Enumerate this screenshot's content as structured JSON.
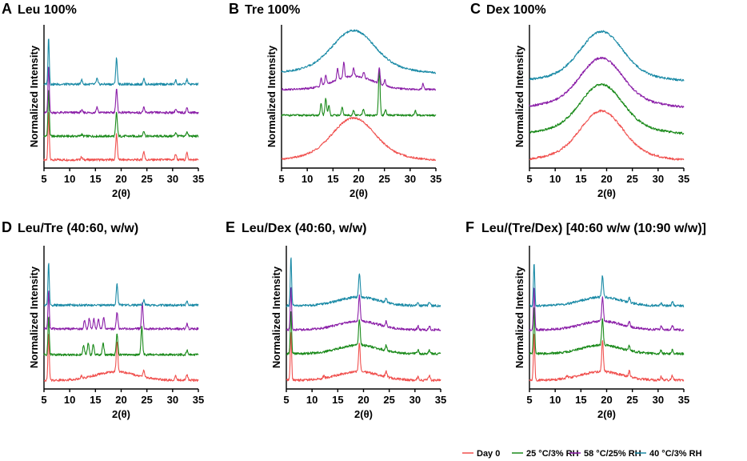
{
  "figure_panels_count": 6,
  "legend": [
    {
      "label": "Day 0",
      "color": "#f0504e"
    },
    {
      "label": "25 °C/3% RH",
      "color": "#1a8a1a"
    },
    {
      "label": "58 °C/25% RH",
      "color": "#8b1fa8"
    },
    {
      "label": "40 °C/3% RH",
      "color": "#1a8aa6"
    }
  ],
  "chart_data": [
    {
      "type": "line",
      "letter": "A",
      "title": "Leu 100%",
      "xlabel": "2(θ)",
      "ylabel": "Normalized Intensity",
      "xlim": [
        5,
        35
      ],
      "xticks": [
        5,
        10,
        15,
        20,
        25,
        30,
        35
      ],
      "series": [
        {
          "name": "Day 0",
          "offset": 0.0,
          "profile": "crystal",
          "peaks": [
            [
              5.9,
              1.0
            ],
            [
              19.1,
              0.55
            ],
            [
              12.3,
              0.06
            ],
            [
              24.4,
              0.18
            ],
            [
              30.6,
              0.12
            ],
            [
              32.8,
              0.15
            ]
          ]
        },
        {
          "name": "25 °C/3% RH",
          "offset": 0.5,
          "profile": "crystal",
          "peaks": [
            [
              5.9,
              1.0
            ],
            [
              19.1,
              0.5
            ],
            [
              12.3,
              0.04
            ],
            [
              24.4,
              0.12
            ],
            [
              30.6,
              0.08
            ],
            [
              32.8,
              0.1
            ]
          ]
        },
        {
          "name": "58 °C/25% RH",
          "offset": 1.0,
          "profile": "crystal",
          "peaks": [
            [
              5.9,
              1.0
            ],
            [
              19.1,
              0.5
            ],
            [
              15.3,
              0.12
            ],
            [
              12.3,
              0.05
            ],
            [
              24.4,
              0.1
            ],
            [
              30.6,
              0.07
            ],
            [
              32.8,
              0.1
            ]
          ]
        },
        {
          "name": "40 °C/3% RH",
          "offset": 1.6,
          "profile": "crystal",
          "peaks": [
            [
              5.9,
              1.0
            ],
            [
              19.1,
              0.55
            ],
            [
              12.3,
              0.1
            ],
            [
              15.3,
              0.12
            ],
            [
              24.4,
              0.12
            ],
            [
              30.6,
              0.08
            ],
            [
              32.8,
              0.1
            ]
          ]
        }
      ]
    },
    {
      "type": "line",
      "letter": "B",
      "title": "Tre 100%",
      "xlabel": "2(θ)",
      "ylabel": "Normalized Intensity",
      "xlim": [
        5,
        35
      ],
      "xticks": [
        5,
        10,
        15,
        20,
        25,
        30,
        35
      ],
      "series": [
        {
          "name": "Day 0",
          "offset": 0.0,
          "profile": "amorphous",
          "peaks": []
        },
        {
          "name": "25 °C/3% RH",
          "offset": 1.2,
          "profile": "flat",
          "peaks": [
            [
              12.7,
              0.3
            ],
            [
              13.6,
              0.45
            ],
            [
              14.2,
              0.25
            ],
            [
              16.8,
              0.2
            ],
            [
              19.0,
              0.12
            ],
            [
              20.9,
              0.15
            ],
            [
              24.0,
              1.2
            ],
            [
              25.2,
              0.15
            ],
            [
              31.0,
              0.12
            ]
          ]
        },
        {
          "name": "58 °C/25% RH",
          "offset": 1.9,
          "profile": "amorphous_small",
          "peaks": [
            [
              12.7,
              0.2
            ],
            [
              13.6,
              0.25
            ],
            [
              15.9,
              0.3
            ],
            [
              17.1,
              0.4
            ],
            [
              19.0,
              0.2
            ],
            [
              21.0,
              0.15
            ],
            [
              24.0,
              0.4
            ],
            [
              25.1,
              0.15
            ],
            [
              32.5,
              0.15
            ]
          ]
        },
        {
          "name": "40 °C/3% RH",
          "offset": 2.3,
          "profile": "amorphous",
          "peaks": []
        }
      ]
    },
    {
      "type": "line",
      "letter": "C",
      "title": "Dex 100%",
      "xlabel": "2(θ)",
      "ylabel": "Normalized Intensity",
      "xlim": [
        5,
        35
      ],
      "xticks": [
        5,
        10,
        15,
        20,
        25,
        30,
        35
      ],
      "series": [
        {
          "name": "Day 0",
          "offset": 0.0,
          "profile": "amorphous",
          "peaks": []
        },
        {
          "name": "25 °C/3% RH",
          "offset": 0.6,
          "profile": "amorphous",
          "peaks": []
        },
        {
          "name": "58 °C/25% RH",
          "offset": 1.2,
          "profile": "amorphous",
          "peaks": []
        },
        {
          "name": "40 °C/3% RH",
          "offset": 1.8,
          "profile": "amorphous",
          "peaks": []
        }
      ]
    },
    {
      "type": "line",
      "letter": "D",
      "title": "Leu/Tre (40:60, w/w)",
      "xlabel": "2(θ)",
      "ylabel": "Normalized Intensity",
      "xlim": [
        5,
        35
      ],
      "xticks": [
        5,
        10,
        15,
        20,
        25,
        30,
        35
      ],
      "series": [
        {
          "name": "Day 0",
          "offset": 0.0,
          "profile": "crystal_amorph",
          "peaks": [
            [
              5.9,
              1.0
            ],
            [
              19.2,
              0.65
            ],
            [
              12.3,
              0.05
            ],
            [
              24.4,
              0.15
            ],
            [
              30.6,
              0.1
            ],
            [
              32.8,
              0.12
            ]
          ]
        },
        {
          "name": "25 °C/3% RH",
          "offset": 0.55,
          "profile": "crystal",
          "peaks": [
            [
              5.9,
              0.8
            ],
            [
              12.7,
              0.2
            ],
            [
              13.6,
              0.25
            ],
            [
              14.6,
              0.22
            ],
            [
              16.5,
              0.25
            ],
            [
              19.2,
              0.45
            ],
            [
              24.0,
              0.6
            ],
            [
              32.8,
              0.1
            ]
          ]
        },
        {
          "name": "58 °C/25% RH",
          "offset": 1.1,
          "profile": "crystal",
          "peaks": [
            [
              5.9,
              0.8
            ],
            [
              12.9,
              0.18
            ],
            [
              13.8,
              0.22
            ],
            [
              14.7,
              0.2
            ],
            [
              15.6,
              0.2
            ],
            [
              16.6,
              0.25
            ],
            [
              19.2,
              0.35
            ],
            [
              24.1,
              0.55
            ],
            [
              32.8,
              0.1
            ]
          ]
        },
        {
          "name": "40 °C/3% RH",
          "offset": 1.6,
          "profile": "crystal",
          "peaks": [
            [
              5.9,
              0.9
            ],
            [
              19.2,
              0.45
            ],
            [
              24.4,
              0.1
            ],
            [
              32.8,
              0.08
            ]
          ]
        }
      ]
    },
    {
      "type": "line",
      "letter": "E",
      "title": "Leu/Dex (40:60, w/w)",
      "xlabel": "2(θ)",
      "ylabel": "Normalized Intensity",
      "xlim": [
        5,
        35
      ],
      "xticks": [
        5,
        10,
        15,
        20,
        25,
        30,
        35
      ],
      "series": [
        {
          "name": "Day 0",
          "offset": 0.0,
          "profile": "crystal_amorph",
          "peaks": [
            [
              5.9,
              1.0
            ],
            [
              19.2,
              0.6
            ],
            [
              12.3,
              0.05
            ],
            [
              24.4,
              0.12
            ],
            [
              30.6,
              0.08
            ],
            [
              32.8,
              0.1
            ]
          ]
        },
        {
          "name": "25 °C/3% RH",
          "offset": 0.55,
          "profile": "crystal_amorph",
          "peaks": [
            [
              5.9,
              0.9
            ],
            [
              19.2,
              0.55
            ],
            [
              24.4,
              0.1
            ],
            [
              30.6,
              0.07
            ],
            [
              32.8,
              0.08
            ]
          ]
        },
        {
          "name": "58 °C/25% RH",
          "offset": 1.05,
          "profile": "crystal_amorph",
          "peaks": [
            [
              5.9,
              0.9
            ],
            [
              19.2,
              0.55
            ],
            [
              24.4,
              0.1
            ],
            [
              30.6,
              0.07
            ],
            [
              32.8,
              0.08
            ]
          ]
        },
        {
          "name": "40 °C/3% RH",
          "offset": 1.55,
          "profile": "crystal_amorph",
          "peaks": [
            [
              5.9,
              1.0
            ],
            [
              19.2,
              0.5
            ],
            [
              24.4,
              0.1
            ],
            [
              30.6,
              0.07
            ],
            [
              32.8,
              0.08
            ]
          ]
        }
      ]
    },
    {
      "type": "line",
      "letter": "F",
      "title": "Leu/(Tre/Dex) [40:60 w/w (10:90 w/w)]",
      "xlabel": "2(θ)",
      "ylabel": "Normalized Intensity",
      "xlim": [
        5,
        35
      ],
      "xticks": [
        5,
        10,
        15,
        20,
        25,
        30,
        35
      ],
      "series": [
        {
          "name": "Day 0",
          "offset": 0.0,
          "profile": "crystal_amorph",
          "peaks": [
            [
              5.9,
              1.0
            ],
            [
              19.2,
              0.65
            ],
            [
              12.3,
              0.05
            ],
            [
              24.4,
              0.12
            ],
            [
              30.6,
              0.08
            ],
            [
              32.8,
              0.1
            ]
          ]
        },
        {
          "name": "25 °C/3% RH",
          "offset": 0.55,
          "profile": "crystal_amorph",
          "peaks": [
            [
              5.9,
              1.0
            ],
            [
              19.2,
              0.55
            ],
            [
              24.4,
              0.1
            ],
            [
              30.6,
              0.07
            ],
            [
              32.8,
              0.08
            ]
          ]
        },
        {
          "name": "58 °C/25% RH",
          "offset": 1.05,
          "profile": "crystal_amorph",
          "peaks": [
            [
              5.9,
              0.9
            ],
            [
              19.2,
              0.5
            ],
            [
              24.4,
              0.1
            ],
            [
              30.6,
              0.07
            ],
            [
              32.8,
              0.08
            ]
          ]
        },
        {
          "name": "40 °C/3% RH",
          "offset": 1.55,
          "profile": "crystal_amorph",
          "peaks": [
            [
              5.9,
              0.9
            ],
            [
              19.2,
              0.45
            ],
            [
              24.4,
              0.1
            ],
            [
              30.6,
              0.07
            ],
            [
              32.8,
              0.08
            ]
          ]
        }
      ]
    }
  ]
}
